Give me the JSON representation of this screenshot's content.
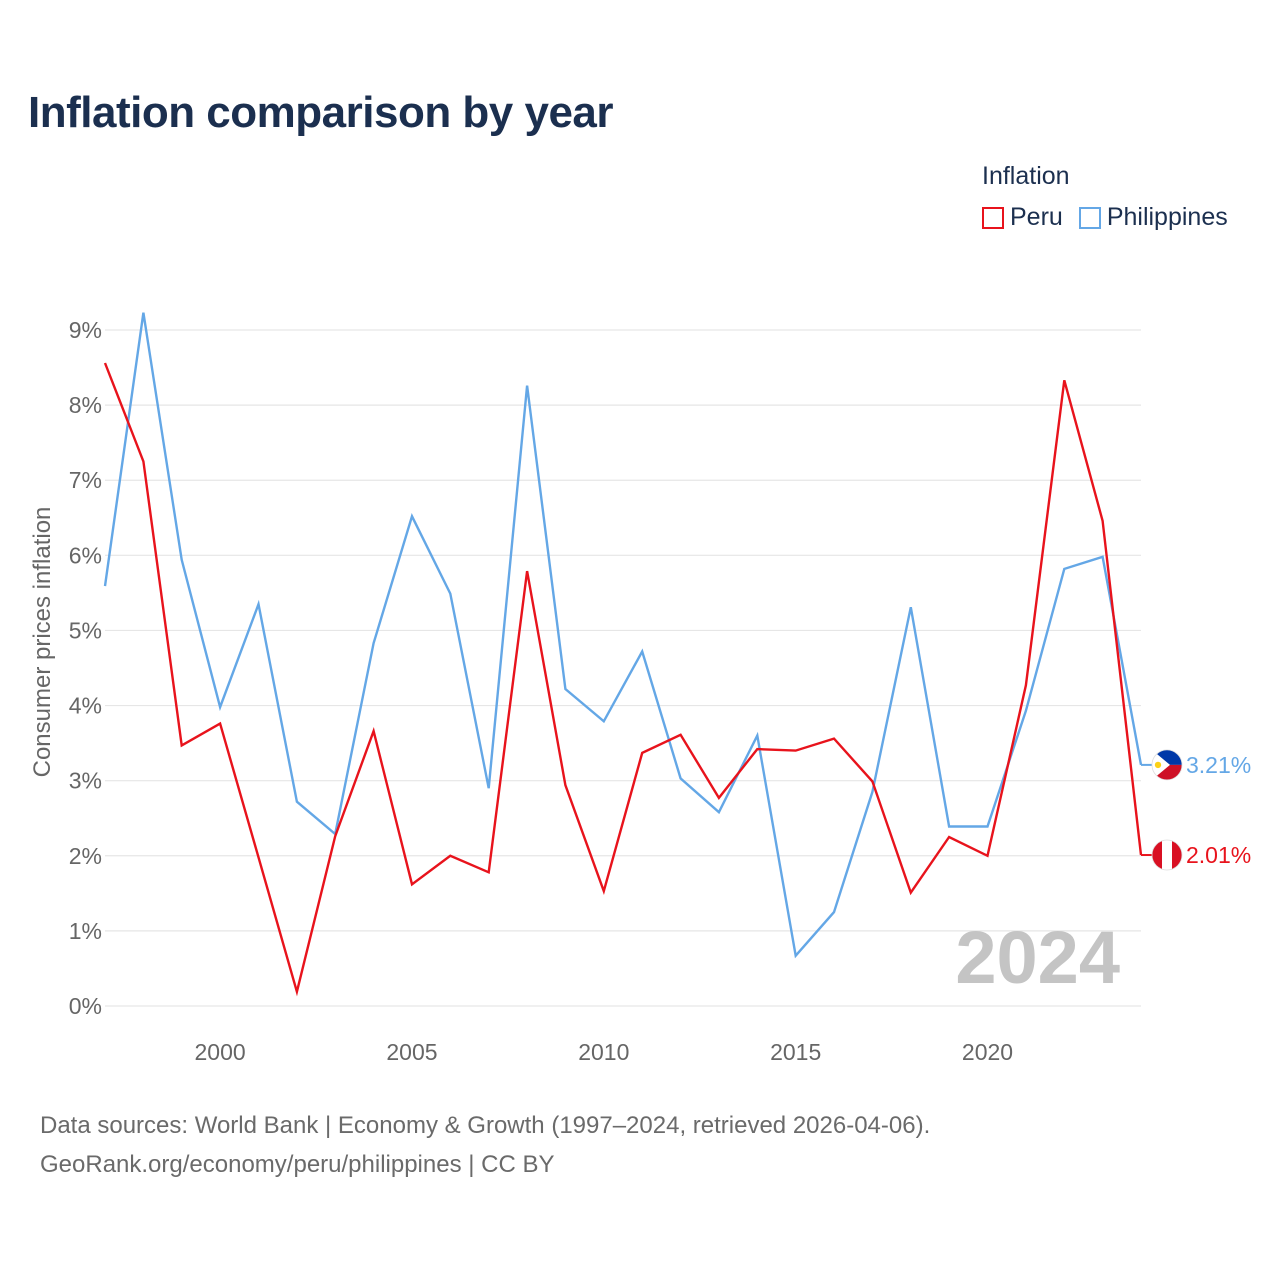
{
  "title": "Inflation comparison by year",
  "legend": {
    "title": "Inflation",
    "items": [
      {
        "label": "Peru",
        "color": "#e8131c"
      },
      {
        "label": "Philippines",
        "color": "#64a7e6"
      }
    ]
  },
  "footer": {
    "line1": "Data sources: World Bank | Economy & Growth (1997–2024, retrieved 2026-04-06).",
    "line2": "GeoRank.org/economy/peru/philippines | CC BY"
  },
  "colors": {
    "peru": "#e8131c",
    "philippines": "#64a7e6",
    "grid": "#e6e6e6",
    "tick_text": "#666666",
    "watermark": "#c4c4c4"
  },
  "chart_data": {
    "type": "line",
    "title": "Inflation comparison by year",
    "ylabel": "Consumer prices inflation",
    "xlabel": "",
    "ylim": [
      0,
      9
    ],
    "xlim": [
      1997,
      2024
    ],
    "yticks": [
      0,
      1,
      2,
      3,
      4,
      5,
      6,
      7,
      8,
      9
    ],
    "ytick_labels": [
      "0%",
      "1%",
      "2%",
      "3%",
      "4%",
      "5%",
      "6%",
      "7%",
      "8%",
      "9%"
    ],
    "xticks": [
      2000,
      2005,
      2010,
      2015,
      2020
    ],
    "xtick_labels": [
      "2000",
      "2005",
      "2010",
      "2015",
      "2020"
    ],
    "watermark_year": "2024",
    "x": [
      1997,
      1998,
      1999,
      2000,
      2001,
      2002,
      2003,
      2004,
      2005,
      2006,
      2007,
      2008,
      2009,
      2010,
      2011,
      2012,
      2013,
      2014,
      2015,
      2016,
      2017,
      2018,
      2019,
      2020,
      2021,
      2022,
      2023,
      2024
    ],
    "series": [
      {
        "name": "Peru",
        "color": "#e8131c",
        "end_label": "2.01%",
        "flag": "peru",
        "values": [
          8.56,
          7.25,
          3.47,
          3.76,
          1.98,
          0.19,
          2.26,
          3.66,
          1.62,
          2.0,
          1.78,
          5.79,
          2.94,
          1.53,
          3.37,
          3.61,
          2.77,
          3.42,
          3.4,
          3.56,
          2.99,
          1.51,
          2.25,
          2.0,
          4.27,
          8.33,
          6.46,
          2.01
        ]
      },
      {
        "name": "Philippines",
        "color": "#64a7e6",
        "end_label": "3.21%",
        "flag": "philippines",
        "values": [
          5.59,
          9.23,
          5.94,
          3.98,
          5.35,
          2.72,
          2.29,
          4.83,
          6.52,
          5.49,
          2.9,
          8.26,
          4.22,
          3.79,
          4.72,
          3.03,
          2.58,
          3.6,
          0.67,
          1.25,
          2.85,
          5.31,
          2.39,
          2.39,
          3.93,
          5.82,
          5.98,
          3.21
        ]
      }
    ]
  }
}
